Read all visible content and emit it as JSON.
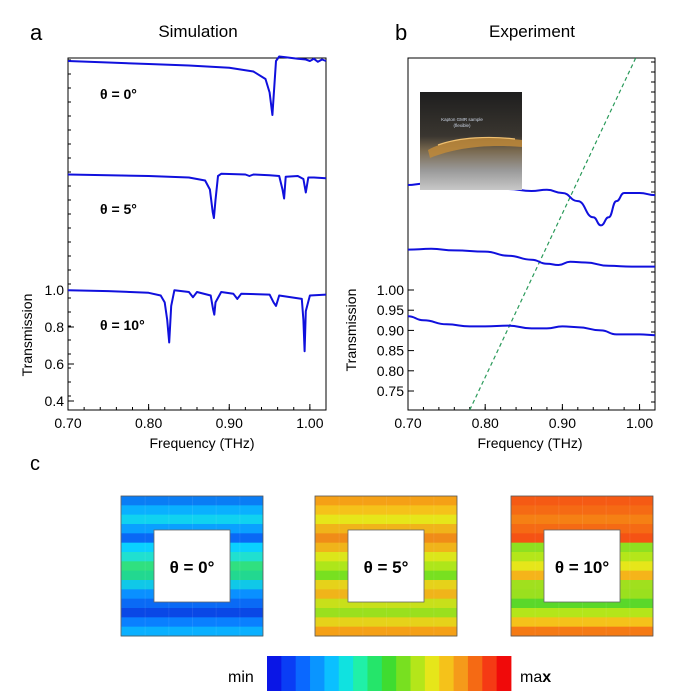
{
  "panels": {
    "a": {
      "letter": "a",
      "title": "Simulation"
    },
    "b": {
      "letter": "b",
      "title": "Experiment"
    },
    "c": {
      "letter": "c"
    }
  },
  "photo": {
    "caption_line1": "Kapton GMR sample",
    "caption_line2": "(flexible)"
  },
  "colorbar": {
    "min_label": "min",
    "max_label_prefix": "ma",
    "max_label_bold": "x",
    "colors": [
      "#0a16e6",
      "#0a3df5",
      "#0a68ff",
      "#0a95ff",
      "#0bc0ff",
      "#10e2e0",
      "#20f0a8",
      "#25e56a",
      "#3fdc30",
      "#78e020",
      "#b4e61a",
      "#e6e61a",
      "#f5c21a",
      "#f59a1a",
      "#f56a14",
      "#f53a14",
      "#f00a0a"
    ]
  },
  "chart_data": [
    {
      "type": "line",
      "panel": "a",
      "title": "Simulation",
      "xlabel": "Frequency (THz)",
      "ylabel": "Transmission",
      "xlim": [
        0.7,
        1.02
      ],
      "ylim": [
        0.35,
        1.05
      ],
      "xticks": [
        "0.70",
        "0.80",
        "0.90",
        "1.00"
      ],
      "yticks": [
        "0.4",
        "0.6",
        "0.8",
        "1.0"
      ],
      "curve_color": "#1010dd",
      "series": [
        {
          "name": "θ = 0°",
          "offset": 0.0,
          "x": [
            0.7,
            0.75,
            0.8,
            0.85,
            0.9,
            0.93,
            0.945,
            0.95,
            0.9535,
            0.955,
            0.958,
            0.962,
            0.97,
            0.985,
            0.995,
            1.0,
            1.005,
            1.01,
            1.015,
            1.02
          ],
          "y": [
            0.96,
            0.95,
            0.94,
            0.93,
            0.915,
            0.89,
            0.84,
            0.75,
            0.6,
            0.72,
            0.96,
            0.99,
            0.985,
            0.975,
            0.97,
            0.96,
            0.975,
            0.955,
            0.97,
            0.96
          ]
        },
        {
          "name": "θ = 5°",
          "offset": 0.0,
          "x": [
            0.7,
            0.75,
            0.8,
            0.85,
            0.87,
            0.876,
            0.8795,
            0.881,
            0.883,
            0.886,
            0.89,
            0.92,
            0.925,
            0.93,
            0.95,
            0.962,
            0.966,
            0.968,
            0.97,
            0.985,
            0.992,
            0.995,
            0.998,
            1.005,
            1.02
          ],
          "y": [
            0.97,
            0.965,
            0.96,
            0.95,
            0.93,
            0.87,
            0.72,
            0.68,
            0.8,
            0.96,
            0.975,
            0.97,
            0.96,
            0.97,
            0.965,
            0.96,
            0.87,
            0.81,
            0.955,
            0.96,
            0.94,
            0.85,
            0.95,
            0.95,
            0.945
          ]
        },
        {
          "name": "θ = 10°",
          "offset": 0.0,
          "x": [
            0.7,
            0.75,
            0.8,
            0.815,
            0.82,
            0.823,
            0.8255,
            0.828,
            0.832,
            0.85,
            0.855,
            0.86,
            0.877,
            0.88,
            0.8815,
            0.883,
            0.89,
            0.905,
            0.91,
            0.915,
            0.95,
            0.955,
            0.958,
            0.962,
            0.99,
            0.992,
            0.9935,
            0.995,
            1.0,
            1.02
          ],
          "y": [
            0.97,
            0.965,
            0.955,
            0.94,
            0.9,
            0.8,
            0.67,
            0.88,
            0.97,
            0.96,
            0.93,
            0.96,
            0.94,
            0.86,
            0.83,
            0.9,
            0.96,
            0.95,
            0.92,
            0.95,
            0.945,
            0.9,
            0.88,
            0.94,
            0.92,
            0.8,
            0.62,
            0.85,
            0.94,
            0.945
          ]
        }
      ]
    },
    {
      "type": "line",
      "panel": "b",
      "title": "Experiment",
      "xlabel": "Frequency (THz)",
      "ylabel": "Transmission",
      "xlim": [
        0.7,
        1.02
      ],
      "ylim": [
        0.72,
        1.05
      ],
      "xticks": [
        "0.70",
        "0.80",
        "0.90",
        "1.00"
      ],
      "yticks": [
        "0.75",
        "0.80",
        "0.85",
        "0.90",
        "0.95",
        "1.00"
      ],
      "curve_color": "#1010dd",
      "guide_line": {
        "style": "dashed",
        "color": "#2a9a5a",
        "x_start": 0.78,
        "x_end": 0.995
      },
      "series": [
        {
          "name": "θ = 0°",
          "x": [
            0.7,
            0.72,
            0.75,
            0.78,
            0.8,
            0.83,
            0.86,
            0.88,
            0.9,
            0.92,
            0.94,
            0.95,
            0.96,
            0.97,
            0.98,
            1.0,
            1.02
          ],
          "y": [
            1.04,
            1.043,
            1.04,
            1.035,
            1.03,
            1.03,
            1.025,
            1.028,
            1.02,
            1.0,
            0.96,
            0.94,
            0.96,
            1.0,
            1.02,
            1.02,
            1.015
          ]
        },
        {
          "name": "θ = 5°",
          "x": [
            0.7,
            0.73,
            0.76,
            0.8,
            0.83,
            0.86,
            0.88,
            0.895,
            0.91,
            0.93,
            0.96,
            0.99,
            1.02
          ],
          "y": [
            1.0,
            1.002,
            0.998,
            0.995,
            0.985,
            0.975,
            0.965,
            0.962,
            0.97,
            0.968,
            0.96,
            0.958,
            0.958
          ]
        },
        {
          "name": "θ = 10°",
          "x": [
            0.7,
            0.72,
            0.75,
            0.78,
            0.8,
            0.83,
            0.86,
            0.88,
            0.9,
            0.92,
            0.95,
            0.97,
            1.0,
            1.02
          ],
          "y": [
            0.935,
            0.925,
            0.915,
            0.91,
            0.91,
            0.912,
            0.905,
            0.905,
            0.91,
            0.908,
            0.9,
            0.89,
            0.89,
            0.888
          ]
        }
      ]
    }
  ],
  "field_maps": [
    {
      "label": "θ = 0°",
      "top": [
        "#0a7df5",
        "#0ab0ff",
        "#10d2f0",
        "#0aa0ff",
        "#0a68f5"
      ],
      "middle": [
        "#0ad0ff",
        "#20e0d0",
        "#30e080",
        "#22d890",
        "#10c8e8"
      ],
      "bottom": [
        "#0a90ff",
        "#0a6af5",
        "#0a48e6",
        "#0a80ff",
        "#0ab0ff"
      ]
    },
    {
      "label": "θ = 5°",
      "top": [
        "#f5a016",
        "#f5c21a",
        "#e6e61a",
        "#f0b41a",
        "#f08c18"
      ],
      "middle": [
        "#f0b41a",
        "#dce61a",
        "#aee61a",
        "#78e020",
        "#e6d21a"
      ],
      "bottom": [
        "#f0b41a",
        "#c8e01a",
        "#9ae01e",
        "#e6d21a",
        "#f5a016"
      ]
    },
    {
      "label": "θ = 10°",
      "top": [
        "#f55a14",
        "#f56a14",
        "#f58014",
        "#f56a14",
        "#f55214"
      ],
      "middle": [
        "#8ee020",
        "#b4e61a",
        "#e6e61a",
        "#f5b41a",
        "#a0e01e"
      ],
      "bottom": [
        "#9ae01e",
        "#5ad82a",
        "#b4e61a",
        "#f5c21a",
        "#f57a14"
      ]
    }
  ]
}
